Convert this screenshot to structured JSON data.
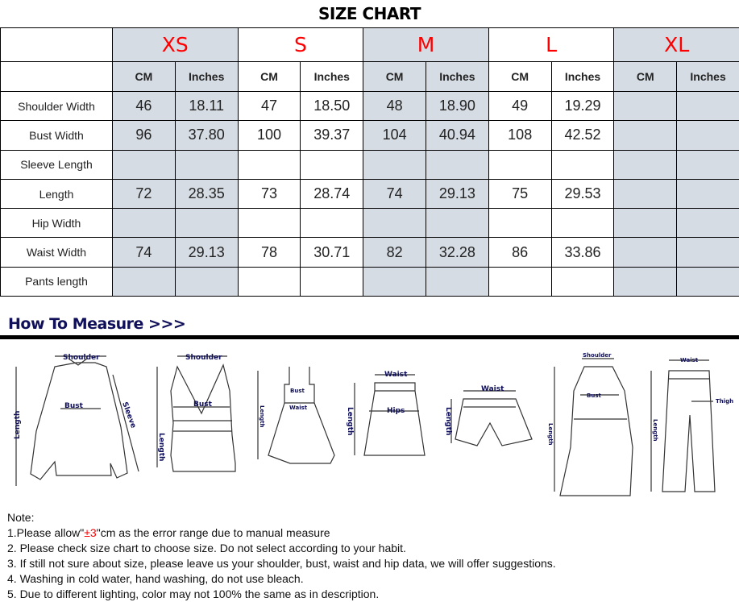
{
  "title": "SIZE CHART",
  "sizes": [
    "XS",
    "S",
    "M",
    "L",
    "XL"
  ],
  "units": [
    "CM",
    "Inches"
  ],
  "rows": [
    {
      "label": "Shoulder Width",
      "values": [
        "46",
        "18.11",
        "47",
        "18.50",
        "48",
        "18.90",
        "49",
        "19.29",
        "",
        ""
      ]
    },
    {
      "label": "Bust Width",
      "values": [
        "96",
        "37.80",
        "100",
        "39.37",
        "104",
        "40.94",
        "108",
        "42.52",
        "",
        ""
      ]
    },
    {
      "label": "Sleeve Length",
      "values": [
        "",
        "",
        "",
        "",
        "",
        "",
        "",
        "",
        "",
        ""
      ]
    },
    {
      "label": "Length",
      "values": [
        "72",
        "28.35",
        "73",
        "28.74",
        "74",
        "29.13",
        "75",
        "29.53",
        "",
        ""
      ]
    },
    {
      "label": "Hip Width",
      "values": [
        "",
        "",
        "",
        "",
        "",
        "",
        "",
        "",
        "",
        ""
      ]
    },
    {
      "label": "Waist Width",
      "values": [
        "74",
        "29.13",
        "78",
        "30.71",
        "82",
        "32.28",
        "86",
        "33.86",
        "",
        ""
      ]
    },
    {
      "label": "Pants length",
      "values": [
        "",
        "",
        "",
        "",
        "",
        "",
        "",
        "",
        "",
        ""
      ]
    }
  ],
  "how_to_measure": "How To Measure >>>",
  "diagram_labels": {
    "shoulder": "Shoulder",
    "bust": "Bust",
    "sleeve": "Sleeve",
    "length": "Length",
    "waist": "Waist",
    "hips": "Hips",
    "thigh": "Thigh"
  },
  "notes": {
    "heading": "Note:",
    "line1_pre": "1.Please allow\"",
    "line1_red": "±3",
    "line1_post": "\"cm as the error range due to manual measure",
    "line2": "2. Please check size chart to choose size. Do not select according to your habit.",
    "line3": "3. If still not sure about size, please leave us your shoulder, bust, waist and hip data, we will offer suggestions.",
    "line4": "4. Washing in cold water, hand washing, do not use bleach.",
    "line5": "5. Due to different lighting, color may not 100% the same as in description."
  },
  "colors": {
    "size_label": "#ff0000",
    "shade": "#d6dce4",
    "heading": "#10105a"
  }
}
